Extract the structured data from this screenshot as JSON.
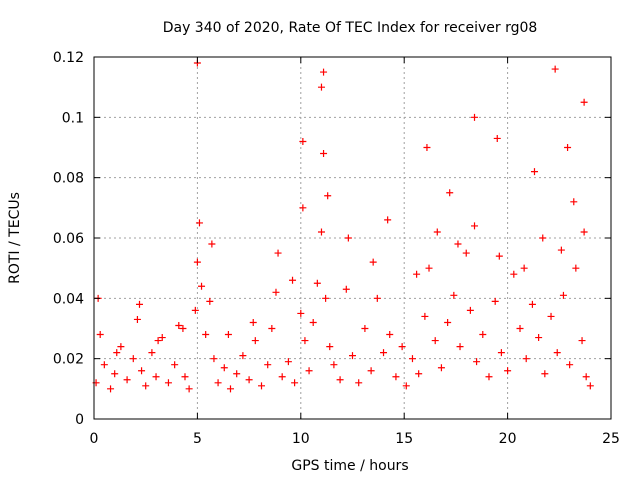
{
  "chart_data": {
    "type": "scatter",
    "title": "Day 340 of 2020, Rate Of TEC Index for receiver rg08",
    "xlabel": "GPS time / hours",
    "ylabel": "ROTI / TECUs",
    "xlim": [
      0,
      25
    ],
    "ylim": [
      0,
      0.12
    ],
    "xticks": [
      0,
      5,
      10,
      15,
      20,
      25
    ],
    "yticks": [
      0,
      0.02,
      0.04,
      0.06,
      0.08,
      0.1,
      0.12
    ],
    "xtick_labels": [
      "0",
      "5",
      "10",
      "15",
      "20",
      "25"
    ],
    "ytick_labels": [
      "0",
      "0.02",
      "0.04",
      "0.06",
      "0.08",
      "0.1",
      "0.12"
    ],
    "grid": true,
    "marker": "+",
    "marker_color": "#ff0000",
    "series": [
      {
        "x": [
          0.1,
          0.3,
          0.5,
          0.8,
          1.0,
          1.3,
          1.6,
          1.9,
          2.1,
          2.3,
          2.5,
          2.8,
          3.0,
          3.3,
          3.6,
          3.9,
          4.1,
          4.4,
          4.6,
          4.9,
          5.0,
          5.2,
          5.4,
          5.6,
          5.8,
          6.0,
          6.3,
          6.6,
          6.9,
          7.2,
          7.5,
          7.8,
          8.1,
          8.4,
          8.6,
          8.8,
          9.1,
          9.4,
          9.7,
          10.0,
          10.2,
          10.4,
          10.6,
          10.8,
          11.0,
          11.2,
          11.4,
          11.6,
          11.9,
          12.2,
          12.5,
          12.8,
          13.1,
          13.4,
          13.7,
          14.0,
          14.3,
          14.6,
          14.9,
          15.1,
          15.4,
          15.7,
          16.0,
          16.2,
          16.5,
          16.8,
          17.1,
          17.4,
          17.7,
          18.0,
          18.2,
          18.5,
          18.8,
          19.1,
          19.4,
          19.7,
          20.0,
          20.3,
          20.6,
          20.9,
          21.2,
          21.5,
          21.8,
          22.1,
          22.4,
          22.7,
          23.0,
          23.3,
          23.6,
          23.8,
          24.0,
          0.2,
          1.1,
          2.2,
          3.1,
          4.3,
          5.1,
          5.7,
          6.5,
          7.7,
          8.9,
          9.6,
          10.1,
          11.1,
          11.3,
          12.3,
          13.5,
          14.2,
          15.6,
          16.6,
          17.6,
          18.4,
          19.6,
          20.8,
          21.7,
          22.6,
          23.2,
          23.7,
          5.0,
          11.1,
          10.1,
          18.4,
          22.3,
          23.7,
          11.0,
          16.1,
          17.2,
          19.5,
          21.3,
          22.9
        ],
        "y": [
          0.012,
          0.028,
          0.018,
          0.01,
          0.015,
          0.024,
          0.013,
          0.02,
          0.033,
          0.016,
          0.011,
          0.022,
          0.014,
          0.027,
          0.012,
          0.018,
          0.031,
          0.014,
          0.01,
          0.036,
          0.052,
          0.044,
          0.028,
          0.039,
          0.02,
          0.012,
          0.017,
          0.01,
          0.015,
          0.021,
          0.013,
          0.026,
          0.011,
          0.018,
          0.03,
          0.042,
          0.014,
          0.019,
          0.012,
          0.035,
          0.026,
          0.016,
          0.032,
          0.045,
          0.062,
          0.04,
          0.024,
          0.018,
          0.013,
          0.043,
          0.021,
          0.012,
          0.03,
          0.016,
          0.04,
          0.022,
          0.028,
          0.014,
          0.024,
          0.011,
          0.02,
          0.015,
          0.034,
          0.05,
          0.026,
          0.017,
          0.032,
          0.041,
          0.024,
          0.055,
          0.036,
          0.019,
          0.028,
          0.014,
          0.039,
          0.022,
          0.016,
          0.048,
          0.03,
          0.02,
          0.038,
          0.027,
          0.015,
          0.034,
          0.022,
          0.041,
          0.018,
          0.05,
          0.026,
          0.014,
          0.011,
          0.04,
          0.022,
          0.038,
          0.026,
          0.03,
          0.065,
          0.058,
          0.028,
          0.032,
          0.055,
          0.046,
          0.07,
          0.088,
          0.074,
          0.06,
          0.052,
          0.066,
          0.048,
          0.062,
          0.058,
          0.064,
          0.054,
          0.05,
          0.06,
          0.056,
          0.072,
          0.062,
          0.118,
          0.115,
          0.092,
          0.1,
          0.116,
          0.105,
          0.11,
          0.09,
          0.075,
          0.093,
          0.082,
          0.09
        ]
      }
    ]
  }
}
